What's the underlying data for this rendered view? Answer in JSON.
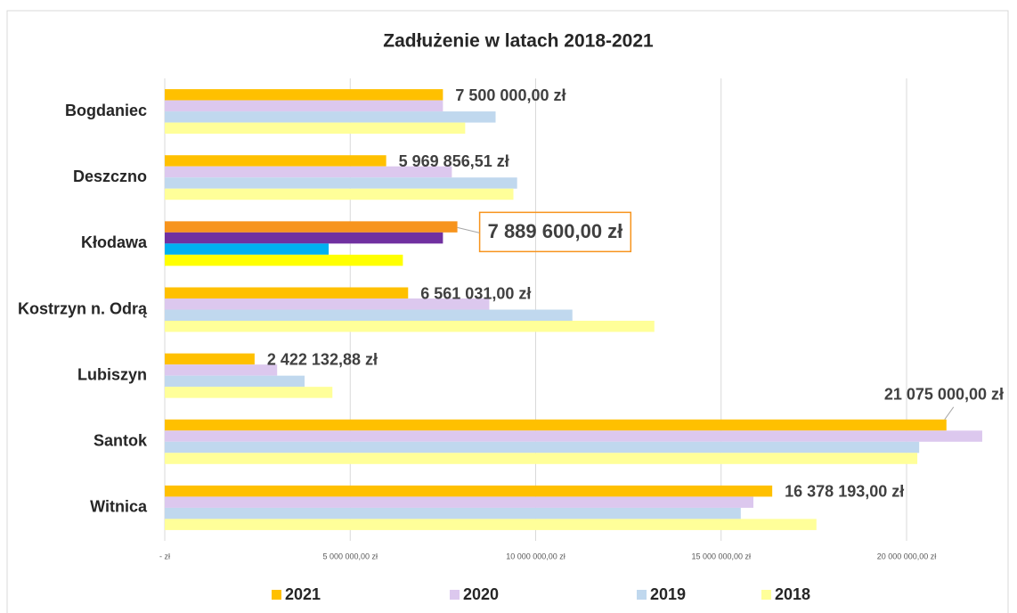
{
  "chart_data": {
    "type": "hbar",
    "title": "Zadłużenie w latach 2018-2021",
    "categories": [
      "Bogdaniec",
      "Deszczno",
      "Kłodawa",
      "Kostrzyn n. Odrą",
      "Lubiszyn",
      "Santok",
      "Witnica"
    ],
    "series": [
      {
        "name": "2021",
        "color": "#ffc000",
        "point_colors": [
          "#ffc000",
          "#ffc000",
          "#f7941d",
          "#ffc000",
          "#ffc000",
          "#ffc000",
          "#ffc000"
        ],
        "values": [
          7500000,
          5969856.51,
          7889600,
          6561031,
          2422132.88,
          21075000,
          16378193
        ],
        "value_labels": [
          "7 500 000,00 zł",
          "5 969 856,51 zł",
          "7 889 600,00 zł",
          "6 561 031,00 zł",
          "2 422 132,88 zł",
          "21 075 000,00 zł",
          "16 378 193,00 zł"
        ]
      },
      {
        "name": "2020",
        "color": "#dcc8ee",
        "point_colors": [
          "#dcc8ee",
          "#dcc8ee",
          "#7030a0",
          "#dcc8ee",
          "#dcc8ee",
          "#dcc8ee",
          "#dcc8ee"
        ],
        "values": [
          7500000,
          7740000,
          7500000,
          8750000,
          3030000,
          22040000,
          15870000
        ]
      },
      {
        "name": "2019",
        "color": "#c0d8ee",
        "point_colors": [
          "#c0d8ee",
          "#c0d8ee",
          "#00b0f0",
          "#c0d8ee",
          "#c0d8ee",
          "#c0d8ee",
          "#c0d8ee"
        ],
        "values": [
          8920000,
          9500000,
          4420000,
          10990000,
          3770000,
          20340000,
          15530000
        ]
      },
      {
        "name": "2018",
        "color": "#ffff99",
        "point_colors": [
          "#ffff99",
          "#ffff99",
          "#ffff00",
          "#ffff99",
          "#ffff99",
          "#ffff99",
          "#ffff99"
        ],
        "values": [
          8100000,
          9400000,
          6420000,
          13200000,
          4520000,
          20290000,
          17570000
        ]
      }
    ],
    "xlim": [
      0,
      22000000
    ],
    "xticks": [
      {
        "value": 0,
        "label": "-   zł"
      },
      {
        "value": 5000000,
        "label": "5 000 000,00 zł"
      },
      {
        "value": 10000000,
        "label": "10 000 000,00 zł"
      },
      {
        "value": 15000000,
        "label": "15 000 000,00 zł"
      },
      {
        "value": 20000000,
        "label": "20 000 000,00 zł"
      }
    ],
    "grid": true,
    "legend": "bottom"
  }
}
